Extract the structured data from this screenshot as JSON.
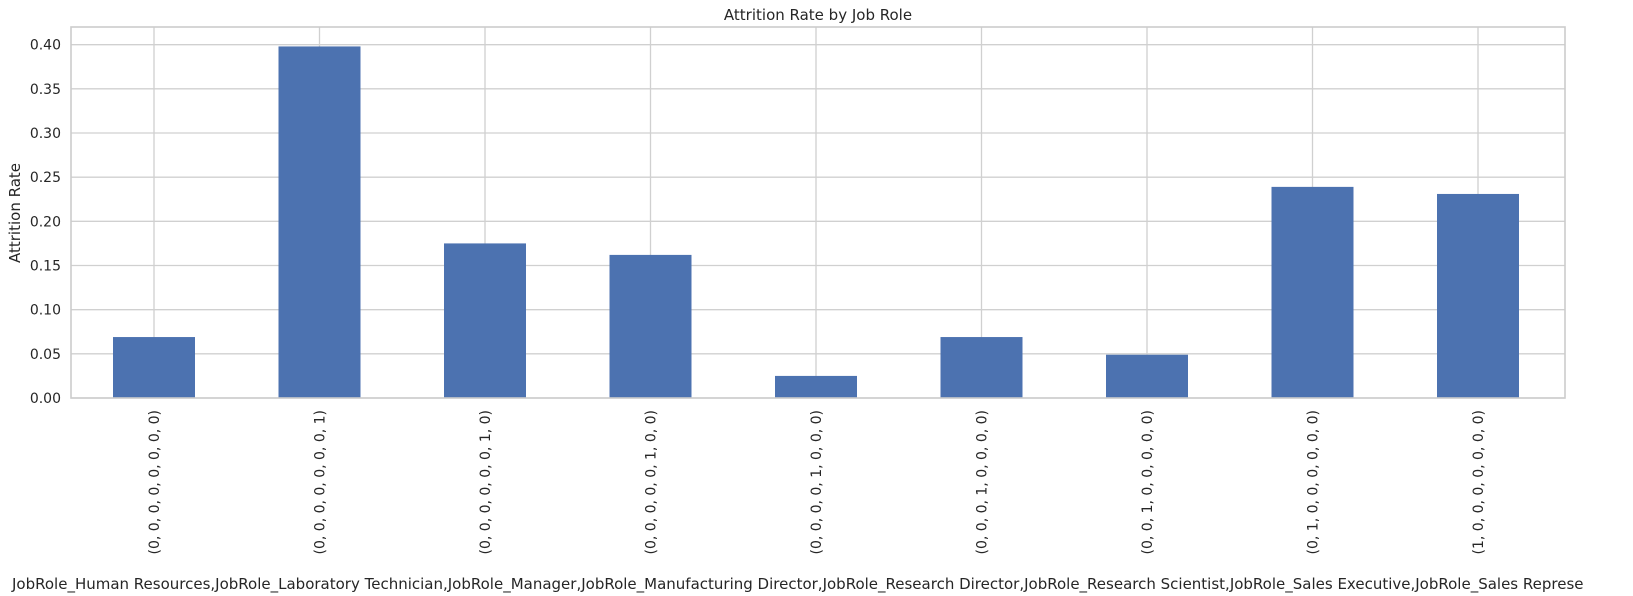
{
  "chart_data": {
    "type": "bar",
    "title": "Attrition Rate by Job Role",
    "xlabel": "JobRole_Human Resources,JobRole_Laboratory Technician,JobRole_Manager,JobRole_Manufacturing Director,JobRole_Research Director,JobRole_Research Scientist,JobRole_Sales Executive,JobRole_Sales Represe",
    "ylabel": "Attrition Rate",
    "categories": [
      "(0, 0, 0, 0, 0, 0, 0, 0)",
      "(0, 0, 0, 0, 0, 0, 0, 1)",
      "(0, 0, 0, 0, 0, 0, 1, 0)",
      "(0, 0, 0, 0, 0, 1, 0, 0)",
      "(0, 0, 0, 0, 1, 0, 0, 0)",
      "(0, 0, 0, 1, 0, 0, 0, 0)",
      "(0, 0, 1, 0, 0, 0, 0, 0)",
      "(0, 1, 0, 0, 0, 0, 0, 0)",
      "(1, 0, 0, 0, 0, 0, 0, 0)"
    ],
    "values": [
      0.069,
      0.398,
      0.175,
      0.162,
      0.025,
      0.069,
      0.049,
      0.239,
      0.231
    ],
    "ylim": [
      0,
      0.42
    ],
    "yticks": [
      "0.00",
      "0.05",
      "0.10",
      "0.15",
      "0.20",
      "0.25",
      "0.30",
      "0.35",
      "0.40"
    ],
    "grid": true,
    "bar_color": "#4c72b0"
  }
}
